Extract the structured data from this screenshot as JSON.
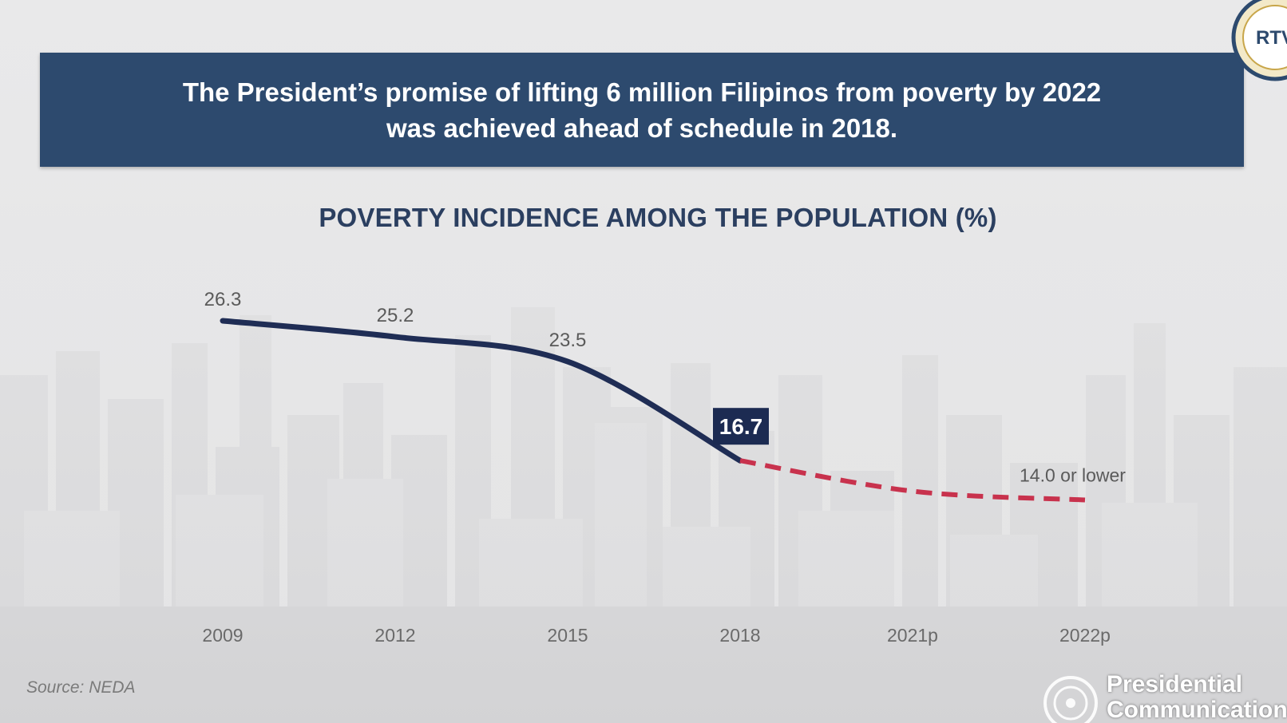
{
  "banner": {
    "line1": "The President’s promise of lifting 6 million Filipinos from poverty by 2022",
    "line2": "was achieved ahead of schedule in 2018."
  },
  "chart_data": {
    "type": "line",
    "title": "POVERTY INCIDENCE AMONG THE POPULATION (%)",
    "categories": [
      "2009",
      "2012",
      "2015",
      "2018",
      "2021p",
      "2022p"
    ],
    "series": [
      {
        "values": [
          26.3,
          25.2,
          23.5,
          16.7,
          null,
          null
        ],
        "style": "solid",
        "color": "#1f2d55"
      },
      {
        "values": [
          null,
          null,
          null,
          16.7,
          14.6,
          14.0
        ],
        "style": "dashed",
        "color": "#c8324d"
      }
    ],
    "data_labels": [
      "26.3",
      "25.2",
      "23.5",
      "16.7",
      "",
      "14.0 or lower"
    ],
    "highlight_label_bg": "#1c2b52",
    "label_color": "#5a5a5a",
    "xlabel": "",
    "ylabel": "",
    "grid": false,
    "legend": "none"
  },
  "footer": {
    "source": "Source: NEDA",
    "org_line1": "Presidential",
    "org_line2": "Communications"
  },
  "logos": {
    "seal_text": "RTV",
    "pcoo_icon": "pcoo-seal-icon"
  }
}
